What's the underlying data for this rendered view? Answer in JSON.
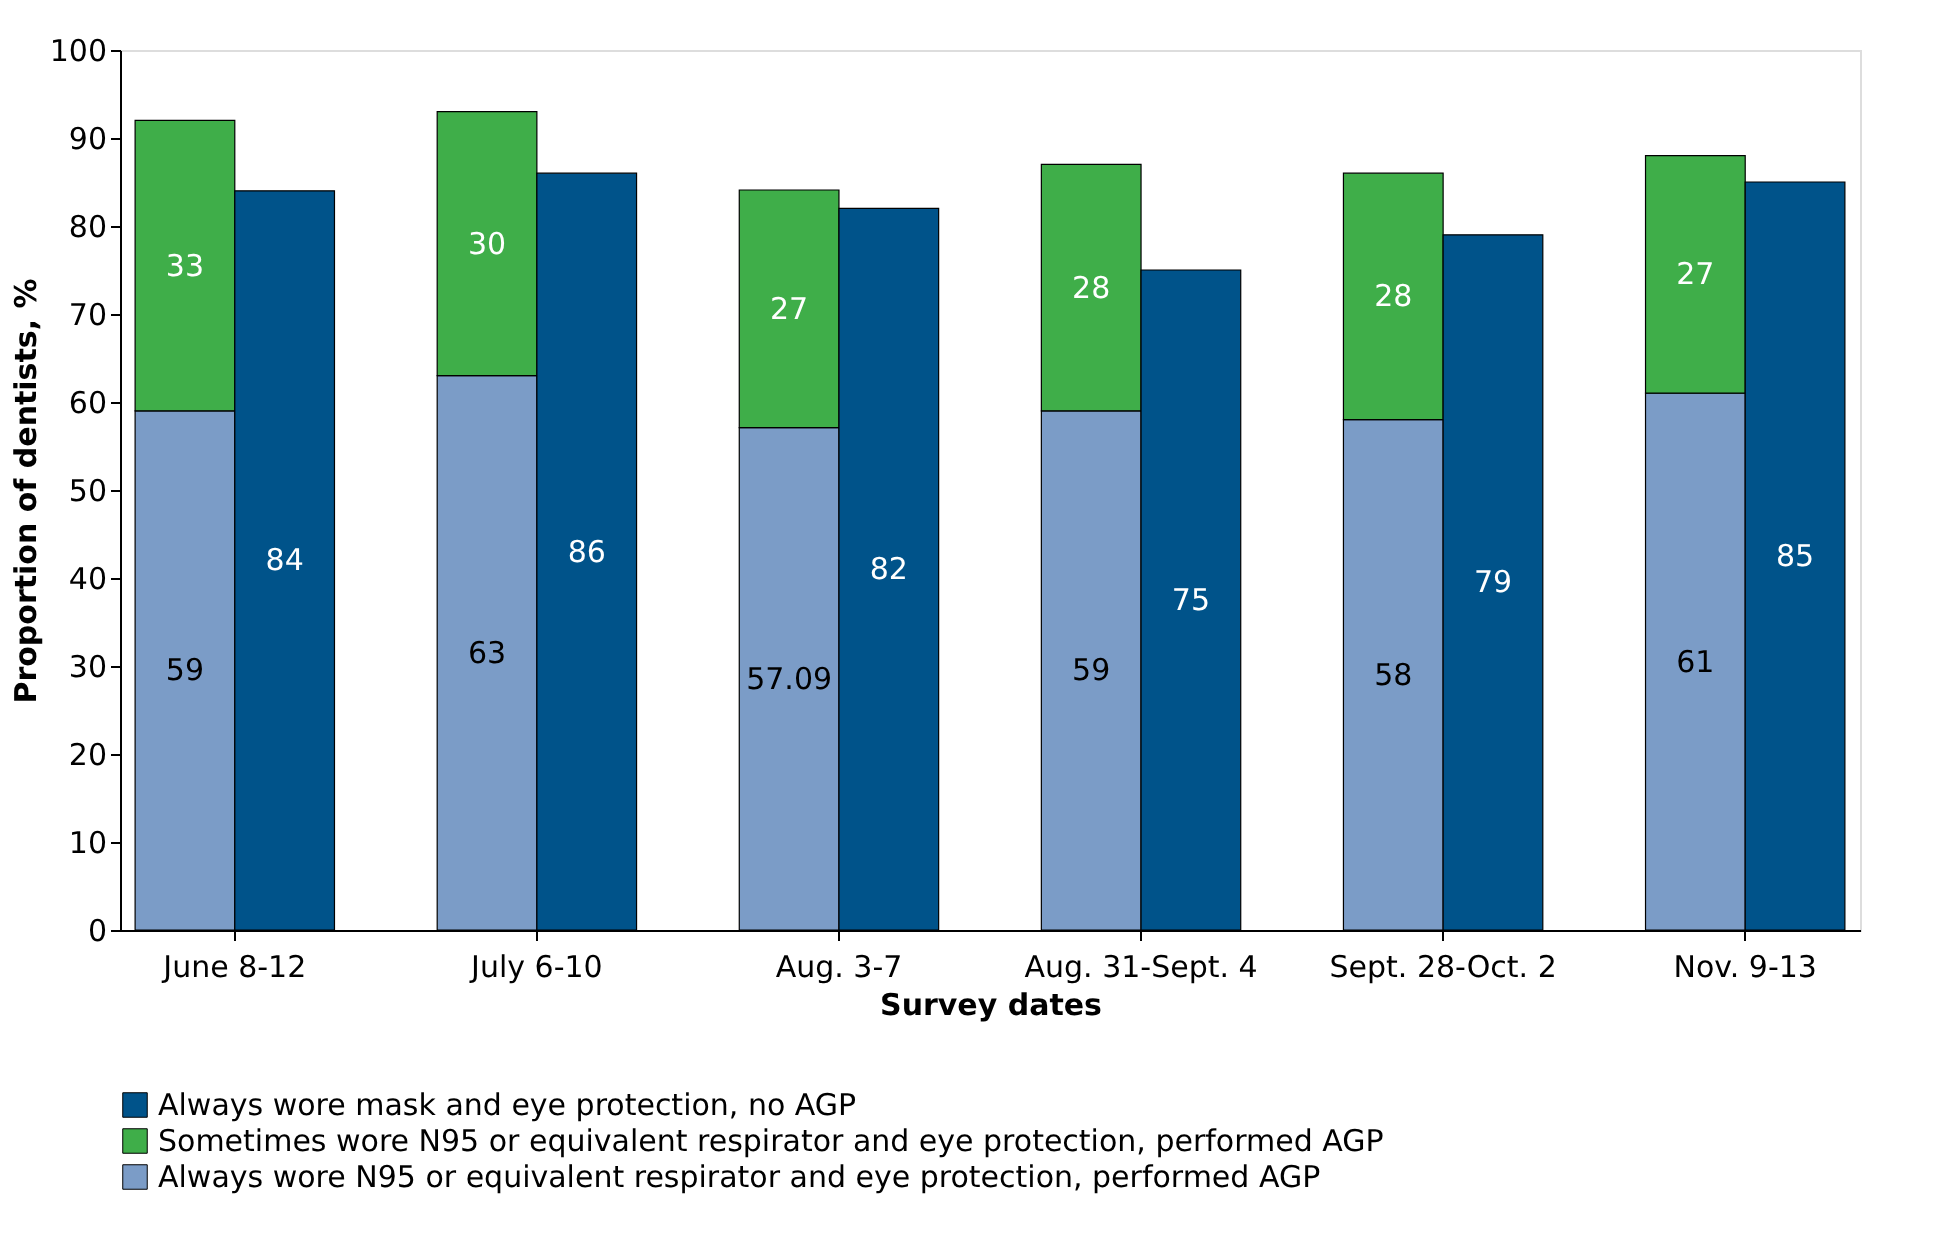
{
  "chart_data": {
    "type": "bar",
    "xlabel": "Survey dates",
    "ylabel": "Proportion of dentists, %",
    "categories": [
      "June 8-12",
      "July 6-10",
      "Aug. 3-7",
      "Aug. 31-Sept. 4",
      "Sept. 28-Oct. 2",
      "Nov. 9-13"
    ],
    "stacked": true,
    "series": [
      {
        "name": "Always wore N95 or equivalent respirator and eye protection, performed AGP",
        "color": "#7b9cc7",
        "values": [
          59,
          63,
          57.09,
          59,
          58,
          61
        ]
      },
      {
        "name": "Sometimes wore N95 or equivalent respirator and eye protection, performed AGP",
        "color": "#3fae49",
        "values": [
          33,
          30,
          27,
          28,
          28,
          27
        ]
      },
      {
        "name": "Always wore mask and eye protection, no AGP",
        "color": "#00538a",
        "values": [
          84,
          86,
          82,
          75,
          79,
          85
        ],
        "axis": "y2"
      }
    ],
    "ylim": [
      0,
      100
    ],
    "y2lim": [
      0,
      100
    ],
    "yticks": [
      0,
      10,
      20,
      30,
      40,
      50,
      60,
      70,
      80,
      90,
      100
    ],
    "grid": false,
    "legend": "bottom",
    "data_labels": true
  }
}
